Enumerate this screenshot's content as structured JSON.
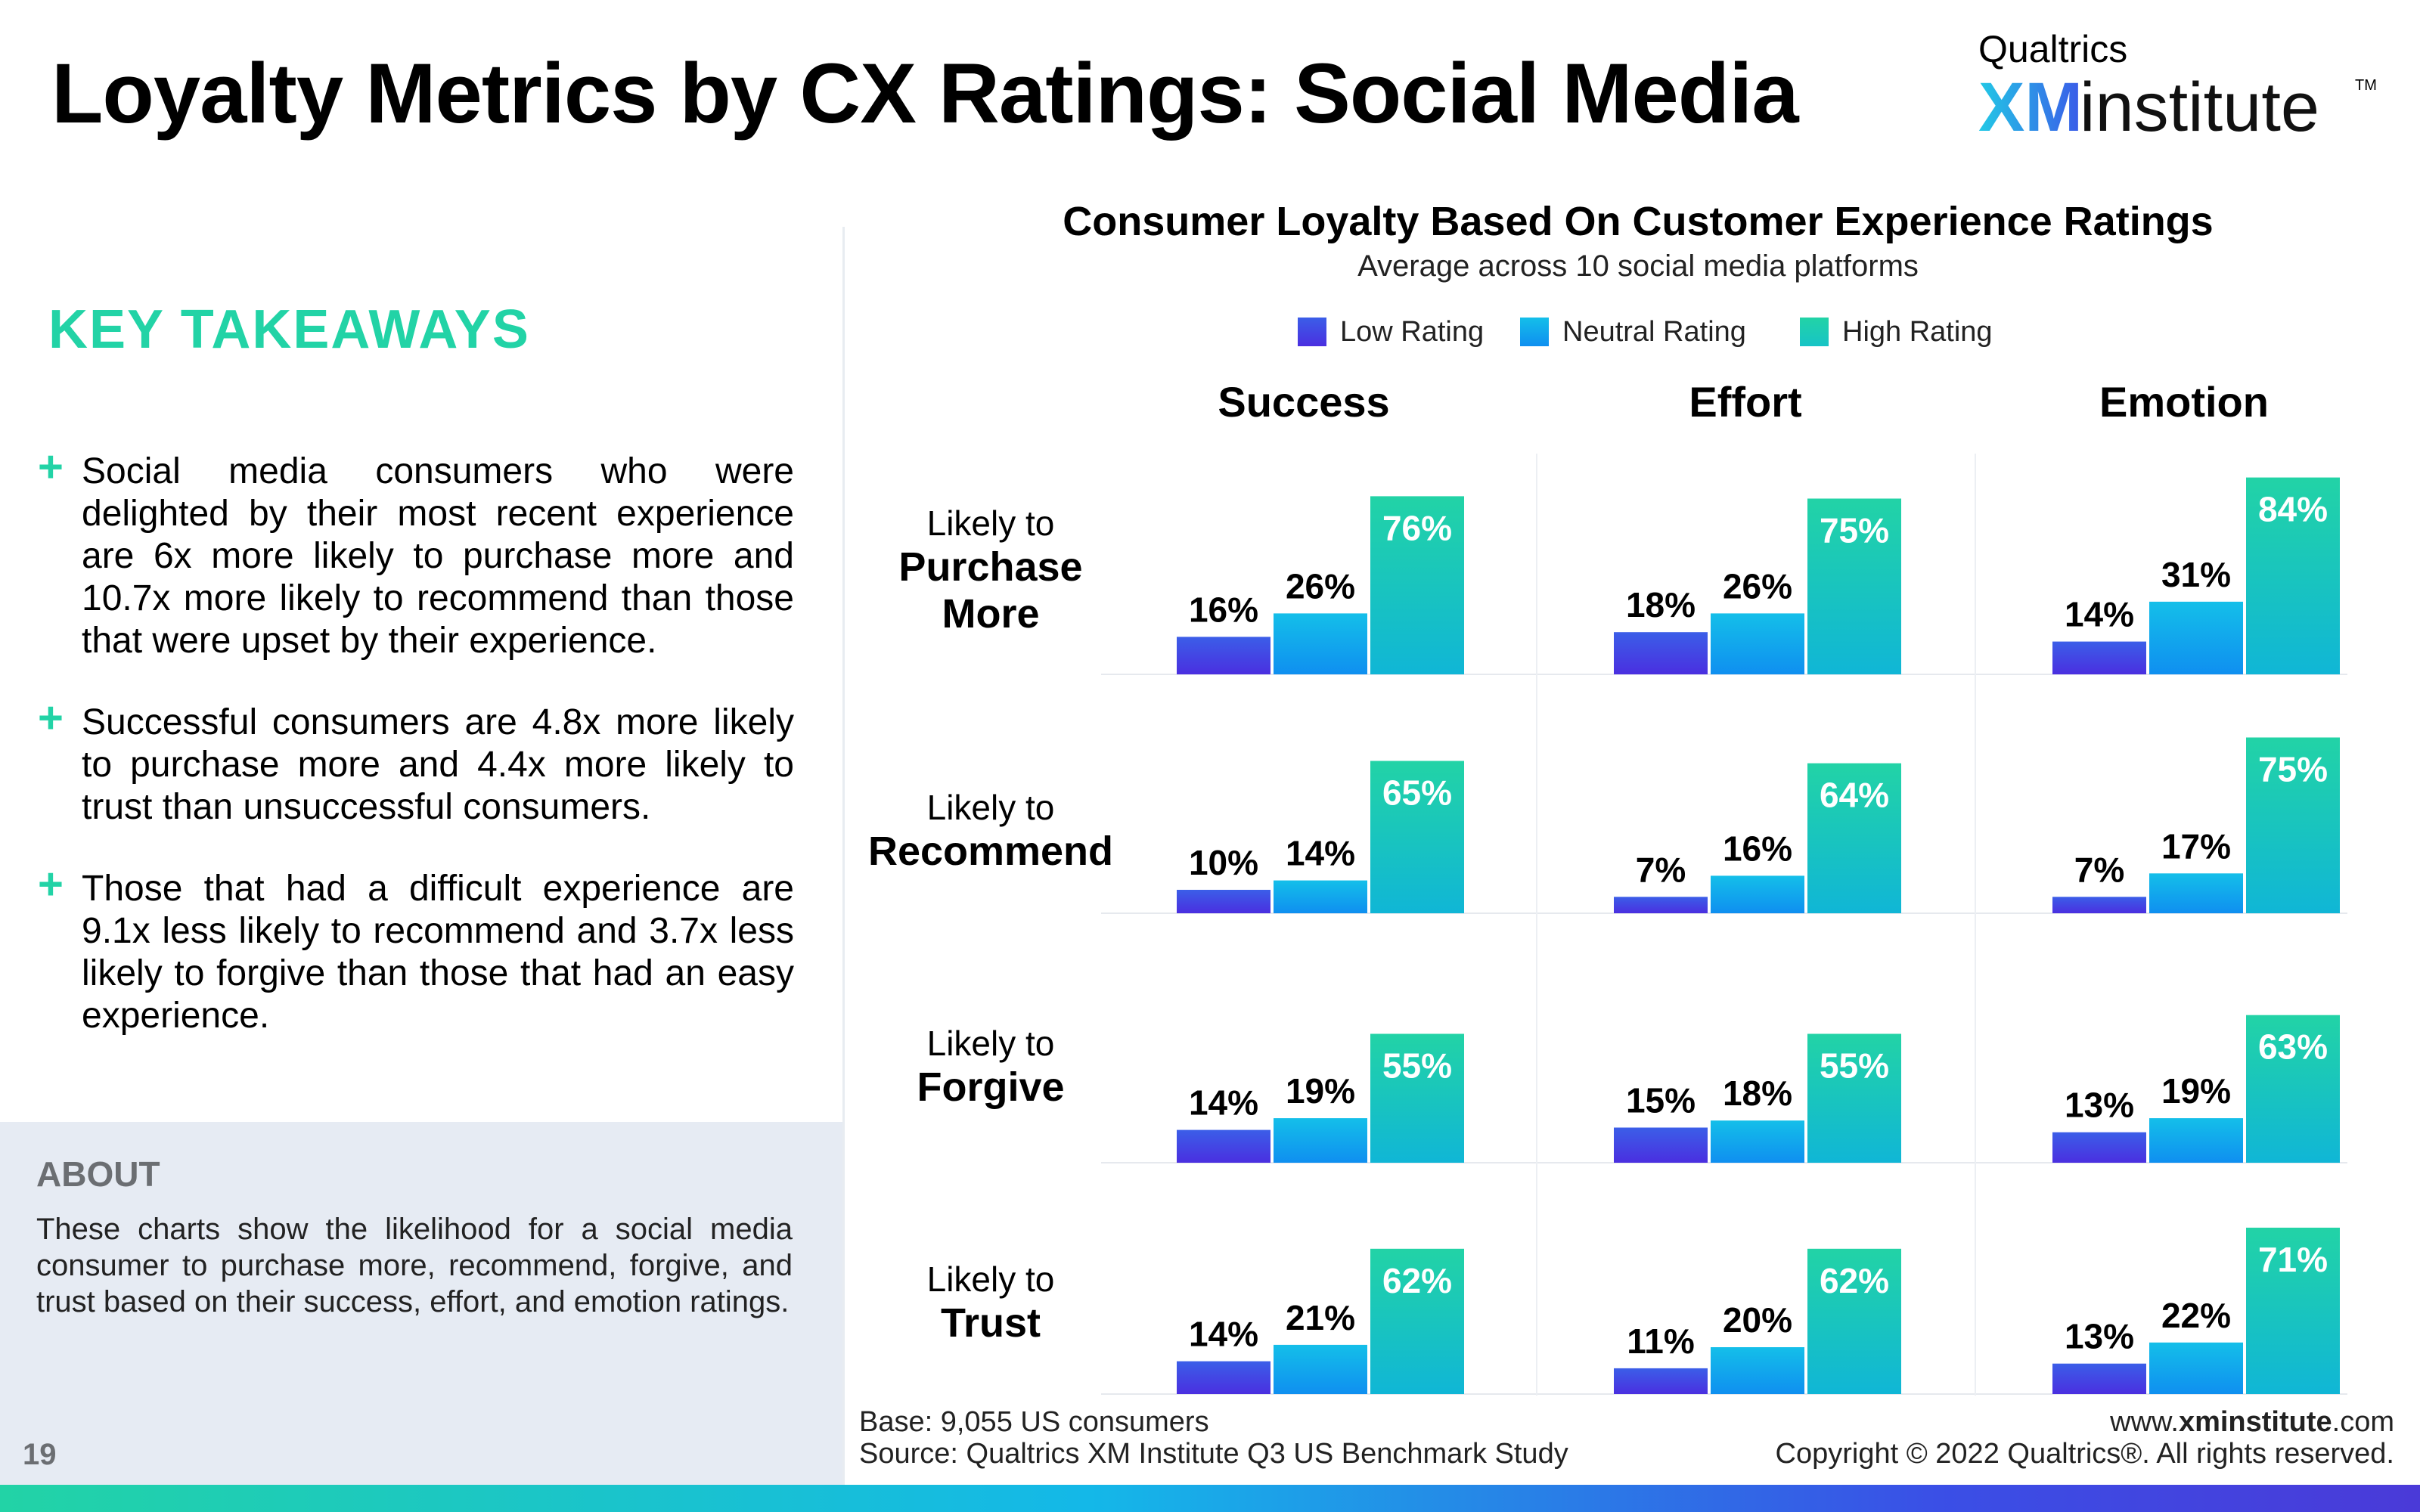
{
  "header": {
    "title": "Loyalty Metrics by CX Ratings: Social Media",
    "logo_brand": "Qualtrics",
    "logo_xm": "XM",
    "logo_word": "institute",
    "logo_tm": "TM"
  },
  "takeaways": {
    "heading": "KEY TAKEAWAYS",
    "items": [
      "Social media consumers who were delighted by their most recent experience are 6x more likely to purchase more and 10.7x more likely to recommend than those that were upset by their experience.",
      "Successful consumers are 4.8x more likely to purchase more and 4.4x more likely to trust than unsuccessful consumers.",
      "Those that had a difficult experience are 9.1x less likely to recommend and 3.7x less likely to forgive than those that had an easy experience."
    ],
    "bullet_symbol": "+"
  },
  "about": {
    "heading": "ABOUT",
    "text": "These charts show the likelihood for a social media consumer to purchase more, recommend, forgive, and trust based on their success, effort, and emotion ratings."
  },
  "page_number": "19",
  "footer": {
    "base": "Base: 9,055 US consumers",
    "source": "Source: Qualtrics XM Institute Q3 US Benchmark Study",
    "website_prefix": "www.",
    "website_bold": "xminstitute",
    "website_suffix": ".com",
    "copyright": "Copyright © 2022 Qualtrics®. All rights reserved."
  },
  "colors": {
    "accent_green": "#22d3a6",
    "low": "#4a2fe0",
    "neutral": "#0fa6ee",
    "high": "#22d3a6"
  },
  "chart_data": {
    "type": "bar",
    "title": "Consumer Loyalty Based On Customer Experience Ratings",
    "subtitle": "Average across 10 social media platforms",
    "legend": [
      "Low Rating",
      "Neutral Rating",
      "High Rating"
    ],
    "legend_placement": "top-center",
    "columns": [
      "Success",
      "Effort",
      "Emotion"
    ],
    "rows": [
      {
        "line1": "Likely to",
        "line2": "Purchase",
        "line3": "More"
      },
      {
        "line1": "Likely to",
        "line2": "Recommend"
      },
      {
        "line1": "Likely to",
        "line2": "Forgive"
      },
      {
        "line1": "Likely to",
        "line2": "Trust"
      }
    ],
    "unit": "%",
    "ylim": [
      0,
      100
    ],
    "values": [
      [
        [
          16,
          26,
          76
        ],
        [
          18,
          26,
          75
        ],
        [
          14,
          31,
          84
        ]
      ],
      [
        [
          10,
          14,
          65
        ],
        [
          7,
          16,
          64
        ],
        [
          7,
          17,
          75
        ]
      ],
      [
        [
          14,
          19,
          55
        ],
        [
          15,
          18,
          55
        ],
        [
          13,
          19,
          63
        ]
      ],
      [
        [
          14,
          21,
          62
        ],
        [
          11,
          20,
          62
        ],
        [
          13,
          22,
          71
        ]
      ]
    ]
  }
}
